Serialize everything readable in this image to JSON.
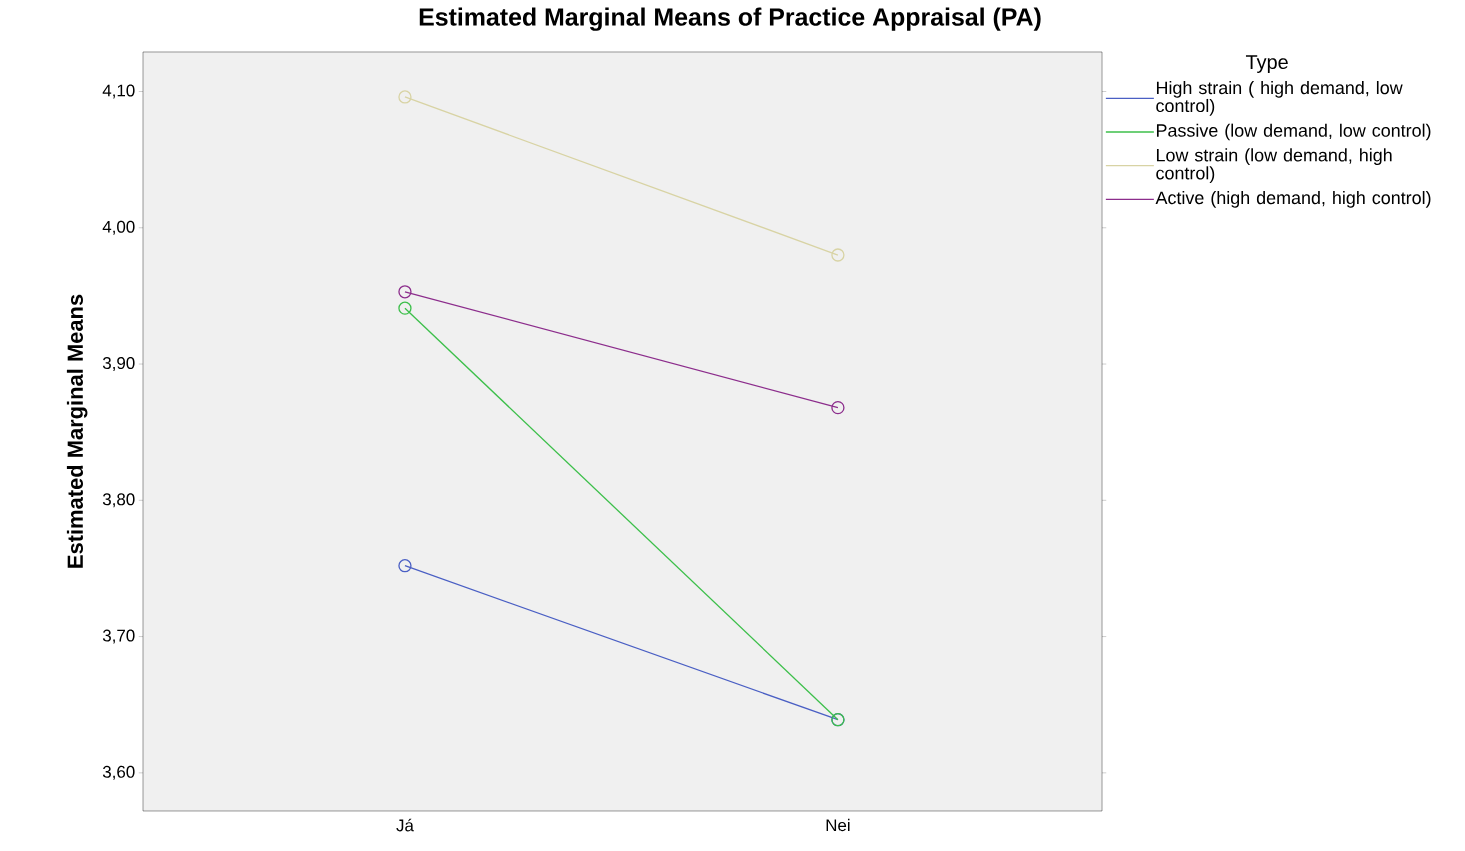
{
  "chart_data": {
    "type": "line",
    "title": "Estimated Marginal Means of Practice Appraisal (PA)",
    "ylabel": "Estimated Marginal Means",
    "legend_title": "Type",
    "categories": [
      "Já",
      "Nei"
    ],
    "series": [
      {
        "name": "High strain ( high demand, low control)",
        "color": "#4a5fc4",
        "values": [
          3.752,
          3.639
        ]
      },
      {
        "name": "Passive (low demand, low control)",
        "color": "#3cbf4a",
        "values": [
          3.941,
          3.639
        ]
      },
      {
        "name": "Low strain (low demand, high control)",
        "color": "#d8d3a4",
        "values": [
          4.096,
          3.98
        ]
      },
      {
        "name": "Active (high demand, high control)",
        "color": "#8c2d8c",
        "values": [
          3.953,
          3.868
        ]
      }
    ],
    "ylim": [
      3.572,
      4.129
    ],
    "yticks": [
      {
        "value": 3.6,
        "label": "3,60"
      },
      {
        "value": 3.7,
        "label": "3,70"
      },
      {
        "value": 3.8,
        "label": "3,80"
      },
      {
        "value": 3.9,
        "label": "3,90"
      },
      {
        "value": 4.0,
        "label": "4,00"
      },
      {
        "value": 4.1,
        "label": "4,10"
      }
    ],
    "legend": "right",
    "grid": false,
    "marker": "circle",
    "line_style": "solid"
  }
}
